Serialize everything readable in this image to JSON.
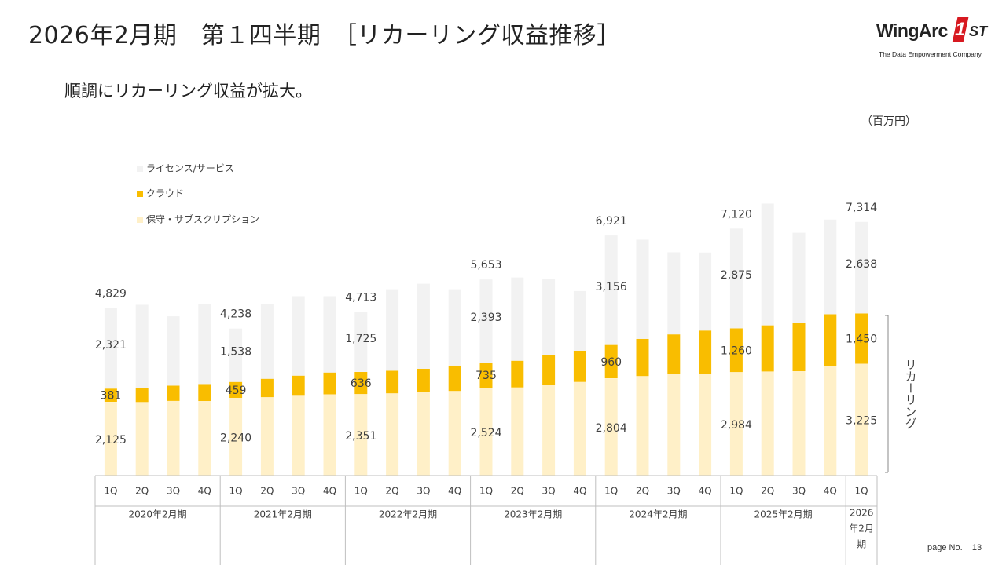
{
  "header": {
    "title": "2026年2月期　第１四半期　［リカーリング収益推移］",
    "subtitle": "順調にリカーリング収益が拡大。",
    "unit": "（百万円）"
  },
  "logo": {
    "brand": "WingArc",
    "badge": "1",
    "badge_suffix": "ST",
    "tagline": "The Data Empowerment Company"
  },
  "footer": {
    "page_label": "page No.",
    "page_number": "13"
  },
  "colors": {
    "license": "#f2f2f2",
    "cloud": "#f9bd00",
    "maintenance": "#fff0c8",
    "text": "#404040"
  },
  "chart_data": {
    "type": "bar",
    "stacked": true,
    "quarters": [
      "1Q",
      "2Q",
      "3Q",
      "4Q",
      "1Q",
      "2Q",
      "3Q",
      "4Q",
      "1Q",
      "2Q",
      "3Q",
      "4Q",
      "1Q",
      "2Q",
      "3Q",
      "4Q",
      "1Q",
      "2Q",
      "3Q",
      "4Q",
      "1Q",
      "2Q",
      "3Q",
      "4Q",
      "1Q"
    ],
    "fiscal_years": [
      {
        "label": "2020年2月期",
        "span": 4
      },
      {
        "label": "2021年2月期",
        "span": 4
      },
      {
        "label": "2022年2月期",
        "span": 4
      },
      {
        "label": "2023年2月期",
        "span": 4
      },
      {
        "label": "2024年2月期",
        "span": 4
      },
      {
        "label": "2025年2月期",
        "span": 4
      },
      {
        "label": "2026年2月期",
        "span": 1
      }
    ],
    "ylim": [
      0,
      8000
    ],
    "series": [
      {
        "name": "保守・サブスクリプション",
        "key": "maintenance",
        "values": [
          2125,
          2120,
          2150,
          2150,
          2240,
          2260,
          2300,
          2340,
          2351,
          2370,
          2400,
          2440,
          2524,
          2540,
          2620,
          2700,
          2804,
          2870,
          2920,
          2930,
          2984,
          3000,
          3010,
          3160,
          3225
        ]
      },
      {
        "name": "クラウド",
        "key": "cloud",
        "values": [
          381,
          400,
          440,
          490,
          459,
          530,
          580,
          630,
          636,
          650,
          680,
          730,
          735,
          770,
          860,
          900,
          960,
          1070,
          1150,
          1250,
          1260,
          1330,
          1400,
          1490,
          1450
        ]
      },
      {
        "name": "ライセンス/サービス",
        "key": "license",
        "values": [
          2321,
          2400,
          2000,
          2300,
          1538,
          2150,
          2290,
          2200,
          1725,
          2350,
          2450,
          2200,
          2393,
          2400,
          2190,
          1720,
          3156,
          2860,
          2370,
          2250,
          2875,
          3510,
          2590,
          2730,
          2638
        ]
      }
    ],
    "totals_labels": [
      {
        "index": 0,
        "text": "4,829"
      },
      {
        "index": 4,
        "text": "4,238"
      },
      {
        "index": 8,
        "text": "4,713"
      },
      {
        "index": 12,
        "text": "5,653"
      },
      {
        "index": 16,
        "text": "6,921"
      },
      {
        "index": 20,
        "text": "7,120"
      },
      {
        "index": 24,
        "text": "7,314"
      }
    ],
    "segment_labels": [
      {
        "index": 0,
        "license": "2,321",
        "cloud": "381",
        "maintenance": "2,125"
      },
      {
        "index": 4,
        "license": "1,538",
        "cloud": "459",
        "maintenance": "2,240"
      },
      {
        "index": 8,
        "license": "1,725",
        "cloud": "636",
        "maintenance": "2,351"
      },
      {
        "index": 12,
        "license": "2,393",
        "cloud": "735",
        "maintenance": "2,524"
      },
      {
        "index": 16,
        "license": "3,156",
        "cloud": "960",
        "maintenance": "2,804"
      },
      {
        "index": 20,
        "license": "2,875",
        "cloud": "1,260",
        "maintenance": "2,984"
      },
      {
        "index": 24,
        "license": "2,638",
        "cloud": "1,450",
        "maintenance": "3,225"
      }
    ],
    "legend": {
      "placement": "top-left",
      "order": [
        "license",
        "cloud",
        "maintenance"
      ]
    },
    "recurring_label": "リカーリング"
  }
}
